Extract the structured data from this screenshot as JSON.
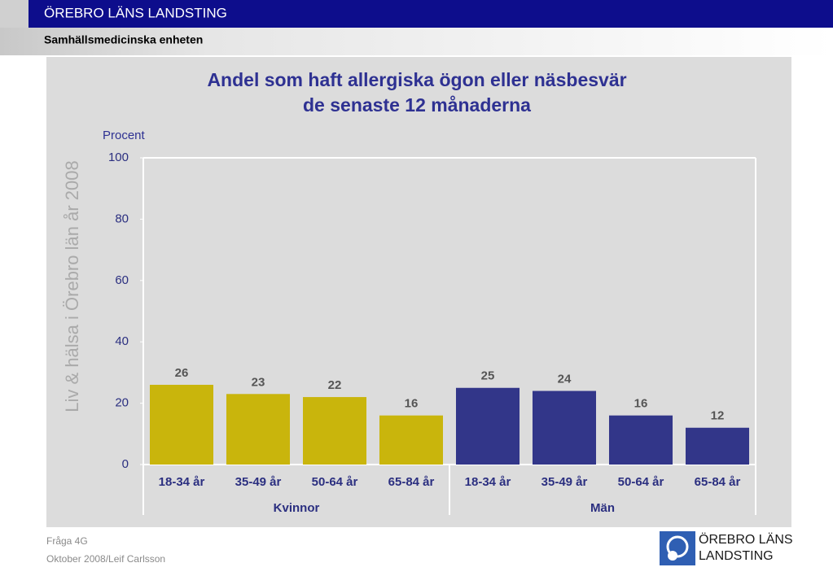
{
  "header": {
    "title": "ÖREBRO LÄNS LANDSTING",
    "subtitle": "Samhällsmedicinska enheten"
  },
  "chart_data": {
    "type": "bar",
    "title": [
      "Andel som haft allergiska ögon eller näsbesvär",
      "de senaste 12 månaderna"
    ],
    "y_label": "Procent",
    "side_label": "Liv & hälsa i Örebro län år 2008",
    "groups": [
      {
        "name": "Kvinnor",
        "color": "#c9b50c",
        "categories": [
          "18-34 år",
          "35-49 år",
          "50-64 år",
          "65-84 år"
        ],
        "values": [
          26,
          23,
          22,
          16
        ]
      },
      {
        "name": "Män",
        "color": "#323689",
        "categories": [
          "18-34 år",
          "35-49 år",
          "50-64 år",
          "65-84 år"
        ],
        "values": [
          25,
          24,
          16,
          12
        ]
      }
    ],
    "ylim": [
      0,
      100
    ],
    "yticks": [
      0,
      20,
      40,
      60,
      80,
      100
    ],
    "grid": false
  },
  "footer": {
    "question": "Fråga 4G",
    "author": "Oktober 2008/Leif Carlsson",
    "logo": [
      "ÖREBRO LÄNS",
      "LANDSTING"
    ]
  }
}
